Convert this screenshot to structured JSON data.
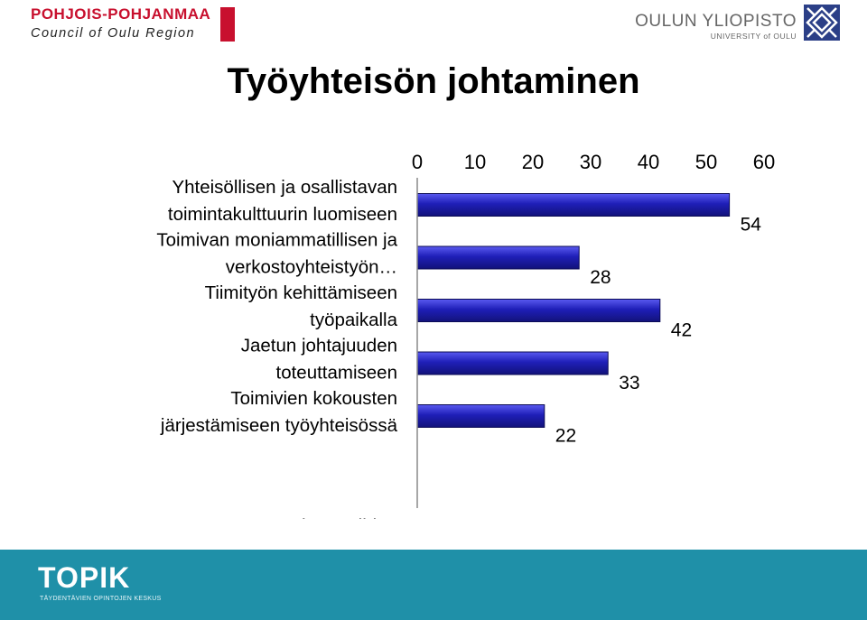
{
  "header": {
    "left_logo_line1": "POHJOIS-POHJANMAA",
    "left_logo_line2": "Council of Oulu Region",
    "right_logo_line1": "OULUN YLIOPISTO",
    "right_logo_line2": "UNIVERSITY of OULU"
  },
  "title": "Työyhteisön johtaminen",
  "chart_data": {
    "type": "bar",
    "orientation": "horizontal",
    "categories": [
      [
        "Yhteisöllisen ja osallistavan",
        "toimintakulttuurin luomiseen"
      ],
      [
        "Toimivan moniammatillisen ja",
        "verkostoyhteistyön…"
      ],
      [
        "Tiimityön kehittämiseen",
        "työpaikalla"
      ],
      [
        "Jaetun johtajuuden",
        "toteuttamiseen"
      ],
      [
        "Toimivien kokousten",
        "järjestämiseen työyhteisössä"
      ],
      [
        "Muuhun; mihin?"
      ]
    ],
    "values": [
      54,
      28,
      42,
      33,
      22,
      0
    ],
    "xlim": [
      0,
      60
    ],
    "xticks": [
      "0",
      "10",
      "20",
      "30",
      "40",
      "50",
      "60"
    ],
    "axis_position": "top",
    "bar_color": "#1f1fb8",
    "grid": false,
    "legend": "none"
  },
  "footer": {
    "brand": "TOPIK",
    "subtitle": "TÄYDENTÄVIEN OPINTOJEN KESKUS",
    "color": "#1f90a8"
  }
}
